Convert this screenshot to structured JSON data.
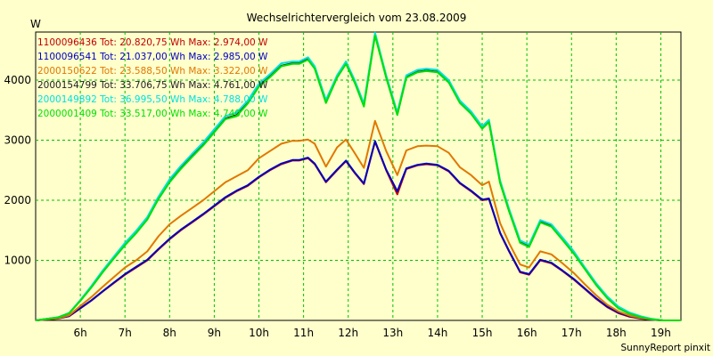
{
  "chart_data": {
    "type": "line",
    "title": "Wechselrichtervergleich vom 23.08.2009",
    "ylabel": "W",
    "xlabel": "",
    "footer": "SunnyReport pinxit",
    "grid": true,
    "legend_position": "top-left",
    "xlim": [
      5.0,
      19.45
    ],
    "ylim": [
      0,
      4800
    ],
    "x_ticks": [
      6,
      7,
      8,
      9,
      10,
      11,
      12,
      13,
      14,
      15,
      16,
      17,
      18,
      19
    ],
    "x_tick_labels": [
      "6h",
      "7h",
      "8h",
      "9h",
      "10h",
      "11h",
      "12h",
      "13h",
      "14h",
      "15h",
      "16h",
      "17h",
      "18h",
      "19h"
    ],
    "y_ticks": [
      1000,
      2000,
      3000,
      4000
    ],
    "y_tick_labels": [
      "1000",
      "2000",
      "3000",
      "4000"
    ],
    "x": [
      5.0,
      5.5,
      5.75,
      6.0,
      6.25,
      6.5,
      6.75,
      7.0,
      7.25,
      7.5,
      7.75,
      8.0,
      8.25,
      8.5,
      8.75,
      9.0,
      9.25,
      9.5,
      9.75,
      10.0,
      10.25,
      10.5,
      10.75,
      10.9,
      11.1,
      11.25,
      11.5,
      11.75,
      11.95,
      12.15,
      12.35,
      12.6,
      12.85,
      13.1,
      13.3,
      13.55,
      13.75,
      14.0,
      14.25,
      14.5,
      14.75,
      15.0,
      15.15,
      15.4,
      15.6,
      15.85,
      16.05,
      16.3,
      16.55,
      16.8,
      17.05,
      17.3,
      17.55,
      17.8,
      18.05,
      18.3,
      18.55,
      18.8,
      19.05,
      19.3,
      19.45
    ],
    "series": [
      {
        "name": "1100096436",
        "legend": "1100096436 Tot: 20.820,75 Wh Max: 2.974,00 W",
        "color": "#c00000",
        "values": [
          0,
          30,
          70,
          200,
          330,
          480,
          620,
          760,
          880,
          1000,
          1180,
          1350,
          1500,
          1630,
          1760,
          1900,
          2040,
          2150,
          2240,
          2380,
          2500,
          2600,
          2660,
          2660,
          2700,
          2600,
          2300,
          2500,
          2650,
          2450,
          2270,
          2974,
          2500,
          2100,
          2520,
          2580,
          2600,
          2580,
          2480,
          2280,
          2150,
          2000,
          2020,
          1450,
          1150,
          800,
          760,
          1000,
          950,
          820,
          680,
          520,
          360,
          220,
          120,
          60,
          30,
          10,
          0,
          0,
          0
        ]
      },
      {
        "name": "1100096541",
        "legend": "1100096541 Tot: 21.037,00 Wh Max: 2.985,00 W",
        "color": "#0000c0",
        "values": [
          0,
          32,
          72,
          205,
          335,
          485,
          630,
          770,
          890,
          1010,
          1190,
          1360,
          1510,
          1640,
          1770,
          1910,
          2050,
          2160,
          2250,
          2390,
          2510,
          2610,
          2670,
          2670,
          2710,
          2610,
          2310,
          2510,
          2660,
          2460,
          2280,
          2985,
          2510,
          2150,
          2530,
          2590,
          2610,
          2590,
          2490,
          2290,
          2160,
          2010,
          2030,
          1460,
          1160,
          810,
          770,
          1010,
          960,
          830,
          690,
          530,
          370,
          230,
          130,
          70,
          35,
          12,
          0,
          0,
          0
        ]
      },
      {
        "name": "2000150622",
        "legend": "2000150622 Tot: 23.588,50 Wh Max: 3.322,00 W",
        "color": "#e07800",
        "values": [
          0,
          35,
          85,
          240,
          390,
          560,
          720,
          880,
          1000,
          1150,
          1400,
          1600,
          1740,
          1870,
          2000,
          2150,
          2300,
          2400,
          2500,
          2700,
          2820,
          2940,
          2990,
          2990,
          3010,
          2940,
          2560,
          2880,
          3010,
          2780,
          2540,
          3322,
          2820,
          2420,
          2830,
          2900,
          2910,
          2900,
          2790,
          2550,
          2420,
          2250,
          2310,
          1620,
          1290,
          930,
          880,
          1150,
          1100,
          950,
          790,
          600,
          420,
          260,
          150,
          80,
          40,
          15,
          0,
          0,
          0
        ]
      },
      {
        "name": "2000154799",
        "legend": "2000154799 Tot: 33.706,75 Wh Max: 4.761,00 W",
        "color": "#202020",
        "values": [
          0,
          50,
          120,
          330,
          560,
          810,
          1040,
          1260,
          1460,
          1690,
          2030,
          2310,
          2530,
          2730,
          2920,
          3140,
          3360,
          3420,
          3620,
          3900,
          4060,
          4240,
          4280,
          4280,
          4350,
          4200,
          3640,
          4050,
          4280,
          3960,
          3580,
          4761,
          4050,
          3430,
          4050,
          4140,
          4160,
          4140,
          3970,
          3630,
          3450,
          3200,
          3310,
          2300,
          1830,
          1300,
          1230,
          1640,
          1570,
          1350,
          1120,
          860,
          600,
          380,
          210,
          120,
          60,
          20,
          0,
          0,
          0
        ]
      },
      {
        "name": "2000149892",
        "legend": "2000149892 Tot: 36.995,50 Wh Max: 4.788,00 W",
        "color": "#00e0e0",
        "values": [
          0,
          52,
          125,
          340,
          575,
          830,
          1060,
          1290,
          1490,
          1720,
          2060,
          2350,
          2570,
          2770,
          2960,
          3180,
          3400,
          3460,
          3660,
          3940,
          4100,
          4280,
          4310,
          4310,
          4380,
          4230,
          3670,
          4080,
          4310,
          3990,
          3610,
          4788,
          4080,
          3460,
          4080,
          4170,
          4190,
          4170,
          4000,
          3660,
          3480,
          3230,
          3340,
          2330,
          1860,
          1330,
          1260,
          1670,
          1600,
          1380,
          1150,
          880,
          620,
          400,
          230,
          130,
          70,
          25,
          0,
          0,
          0
        ]
      },
      {
        "name": "2000001409",
        "legend": "2000001409 Tot: 33.517,00 Wh Max: 4.740,00 W",
        "color": "#00e000",
        "values": [
          0,
          48,
          118,
          325,
          550,
          800,
          1030,
          1250,
          1450,
          1680,
          2020,
          2300,
          2520,
          2720,
          2910,
          3130,
          3350,
          3400,
          3610,
          3890,
          4050,
          4230,
          4270,
          4270,
          4340,
          4190,
          3620,
          4040,
          4270,
          3950,
          3560,
          4740,
          4040,
          3420,
          4040,
          4130,
          4150,
          4130,
          3960,
          3620,
          3440,
          3190,
          3300,
          2290,
          1820,
          1290,
          1220,
          1630,
          1560,
          1340,
          1110,
          850,
          590,
          370,
          200,
          110,
          55,
          18,
          0,
          0,
          0
        ]
      }
    ]
  }
}
